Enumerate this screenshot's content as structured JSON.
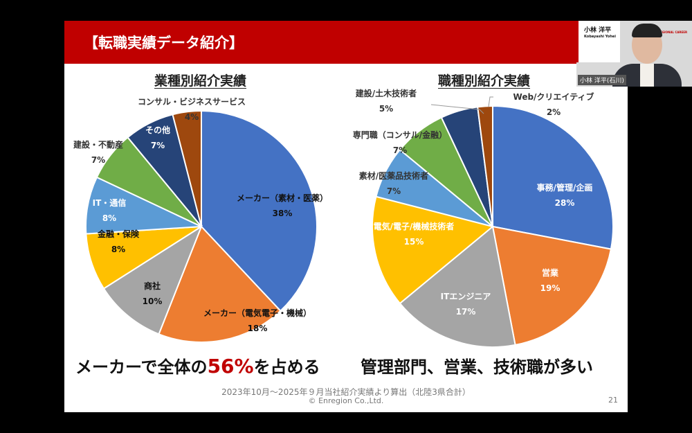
{
  "slide": {
    "title": "【転職実績データ紹介】",
    "footer_note": "2023年10月～2025年９月当社紹介実績より算出（北陸3県合計）",
    "copyright": "© Enregion Co.,Ltd.",
    "page_number": "21",
    "summary_left_pre": "メーカーで全体の",
    "summary_left_highlight": "56%",
    "summary_left_post": "を占める",
    "summary_right": "管理部門、営業、技術職が多い"
  },
  "webcam": {
    "speaker_name": "小林 洋平",
    "speaker_romaji": "Kobayashi Yohei",
    "logo_text": "REGIONAL CAREER",
    "name_tag": "小林 洋平(石川)"
  },
  "chart_data": [
    {
      "type": "pie",
      "title": "業種別紹介実績",
      "start": "12 o'clock, clockwise",
      "categories": [
        "メーカー（素材・医薬）",
        "メーカー（電気電子・機械）",
        "商社",
        "金融・保険",
        "IT・通信",
        "建設・不動産",
        "その他",
        "コンサル・ビジネスサービス"
      ],
      "values": [
        38,
        18,
        10,
        8,
        8,
        7,
        7,
        4
      ],
      "labels": [
        "38%",
        "18%",
        "10%",
        "8%",
        "8%",
        "7%",
        "7%",
        "4%"
      ],
      "colors": [
        "#4472C4",
        "#ED7D31",
        "#A5A5A5",
        "#FFC000",
        "#5B9BD5",
        "#70AD47",
        "#264478",
        "#9E480E"
      ]
    },
    {
      "type": "pie",
      "title": "職種別紹介実績",
      "start": "12 o'clock, clockwise",
      "categories": [
        "事務/管理/企画",
        "営業",
        "ITエンジニア",
        "電気/電子/機械技術者",
        "素材/医薬品技術者",
        "専門職（コンサル/金融）",
        "建設/土木技術者",
        "Web/クリエイティブ"
      ],
      "values": [
        28,
        19,
        17,
        15,
        7,
        7,
        5,
        2
      ],
      "labels": [
        "28%",
        "19%",
        "17%",
        "15%",
        "7%",
        "7%",
        "5%",
        "2%"
      ],
      "colors": [
        "#4472C4",
        "#ED7D31",
        "#A5A5A5",
        "#FFC000",
        "#5B9BD5",
        "#70AD47",
        "#264478",
        "#9E480E"
      ]
    }
  ]
}
